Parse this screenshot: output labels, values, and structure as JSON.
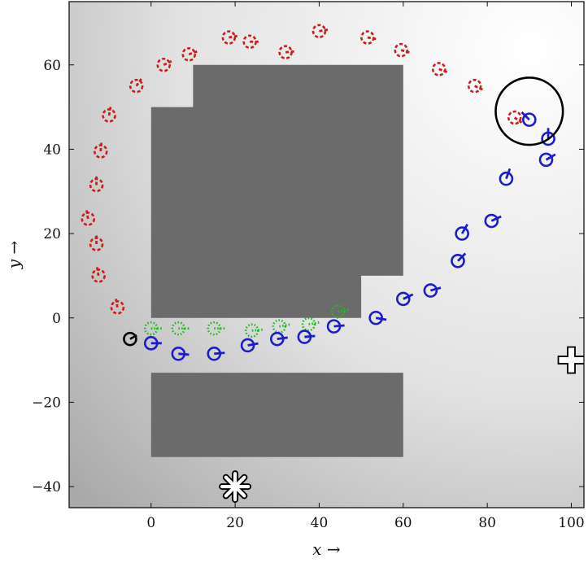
{
  "chart_data": {
    "type": "scatter",
    "title": "",
    "xlabel": "x →",
    "ylabel": "y →",
    "xlim": [
      -19.5,
      103
    ],
    "ylim": [
      -45,
      75
    ],
    "xticks": [
      "0",
      "20",
      "40",
      "60",
      "80",
      "100"
    ],
    "yticks": [
      "−40",
      "−20",
      "0",
      "20",
      "40",
      "60"
    ],
    "xtick_values": [
      0,
      20,
      40,
      60,
      80,
      100
    ],
    "ytick_values": [
      -40,
      -20,
      0,
      20,
      40,
      60
    ],
    "grid": false,
    "background": "radial gradient, white at top-right to grey at bottom-left",
    "obstacles": [
      {
        "polygon": [
          [
            10,
            60
          ],
          [
            60,
            60
          ],
          [
            60,
            10
          ],
          [
            50,
            10
          ],
          [
            50,
            0
          ],
          [
            0,
            0
          ],
          [
            0,
            50
          ],
          [
            10,
            50
          ]
        ]
      },
      {
        "polygon": [
          [
            0,
            -13
          ],
          [
            60,
            -13
          ],
          [
            60,
            -33
          ],
          [
            0,
            -33
          ]
        ]
      }
    ],
    "goal_region": {
      "center": [
        90,
        49
      ],
      "radius": 8
    },
    "start": {
      "x": -5,
      "y": -5
    },
    "markers": [
      {
        "symbol": "plus",
        "x": 100,
        "y": -10
      },
      {
        "symbol": "asterisk",
        "x": 20,
        "y": -40
      }
    ],
    "series": [
      {
        "color": "#1c1ccc",
        "style": "solid",
        "points": [
          {
            "x": 90,
            "y": 47,
            "heading": 135
          },
          {
            "x": 94.5,
            "y": 42.5,
            "heading": 90
          },
          {
            "x": 94,
            "y": 37.5,
            "heading": 30
          },
          {
            "x": 84.5,
            "y": 33,
            "heading": 70
          },
          {
            "x": 81,
            "y": 23,
            "heading": 25
          },
          {
            "x": 74,
            "y": 20,
            "heading": 60
          },
          {
            "x": 73,
            "y": 13.5,
            "heading": 45
          },
          {
            "x": 66.5,
            "y": 6.5,
            "heading": 15
          },
          {
            "x": 60,
            "y": 4.5,
            "heading": 25
          },
          {
            "x": 53.5,
            "y": 0,
            "heading": -10
          },
          {
            "x": 43.5,
            "y": -2,
            "heading": 5
          },
          {
            "x": 36.5,
            "y": -4.5,
            "heading": 5
          },
          {
            "x": 30,
            "y": -5,
            "heading": 8
          },
          {
            "x": 23,
            "y": -6.5,
            "heading": 10
          },
          {
            "x": 15,
            "y": -8.5,
            "heading": 5
          },
          {
            "x": 6.5,
            "y": -8.5,
            "heading": -5
          },
          {
            "x": 0,
            "y": -6,
            "heading": 0
          }
        ]
      },
      {
        "color": "#22bb22",
        "style": "dotted",
        "points": [
          {
            "x": 44.5,
            "y": 1.5,
            "heading": 10
          },
          {
            "x": 37.5,
            "y": -1.5,
            "heading": 10
          },
          {
            "x": 30.5,
            "y": -2,
            "heading": 10
          },
          {
            "x": 24,
            "y": -3,
            "heading": 5
          },
          {
            "x": 15,
            "y": -2.5,
            "heading": 0
          },
          {
            "x": 6.5,
            "y": -2.5,
            "heading": 0
          },
          {
            "x": 0,
            "y": -2.5,
            "heading": 0
          }
        ]
      },
      {
        "color": "#cc1c1c",
        "style": "dashed",
        "points": [
          {
            "x": 86.5,
            "y": 47.5,
            "heading": -35
          },
          {
            "x": 77,
            "y": 55,
            "heading": -25
          },
          {
            "x": 68.5,
            "y": 59,
            "heading": -20
          },
          {
            "x": 59.5,
            "y": 63.5,
            "heading": -15
          },
          {
            "x": 51.5,
            "y": 66.5,
            "heading": -10
          },
          {
            "x": 40,
            "y": 68,
            "heading": 10
          },
          {
            "x": 32,
            "y": 63,
            "heading": 5
          },
          {
            "x": 23.5,
            "y": 65.5,
            "heading": 0
          },
          {
            "x": 18.5,
            "y": 66.5,
            "heading": 10
          },
          {
            "x": 9,
            "y": 62.5,
            "heading": 20
          },
          {
            "x": 3,
            "y": 60,
            "heading": 25
          },
          {
            "x": -3.5,
            "y": 55,
            "heading": 55
          },
          {
            "x": -10,
            "y": 48,
            "heading": 80
          },
          {
            "x": -12,
            "y": 39.5,
            "heading": 85
          },
          {
            "x": -13,
            "y": 31.5,
            "heading": 90
          },
          {
            "x": -15,
            "y": 23.5,
            "heading": 100
          },
          {
            "x": -13,
            "y": 17.5,
            "heading": 90
          },
          {
            "x": -12.5,
            "y": 10,
            "heading": 100
          },
          {
            "x": -8,
            "y": 2.5,
            "heading": 100
          }
        ]
      }
    ]
  }
}
